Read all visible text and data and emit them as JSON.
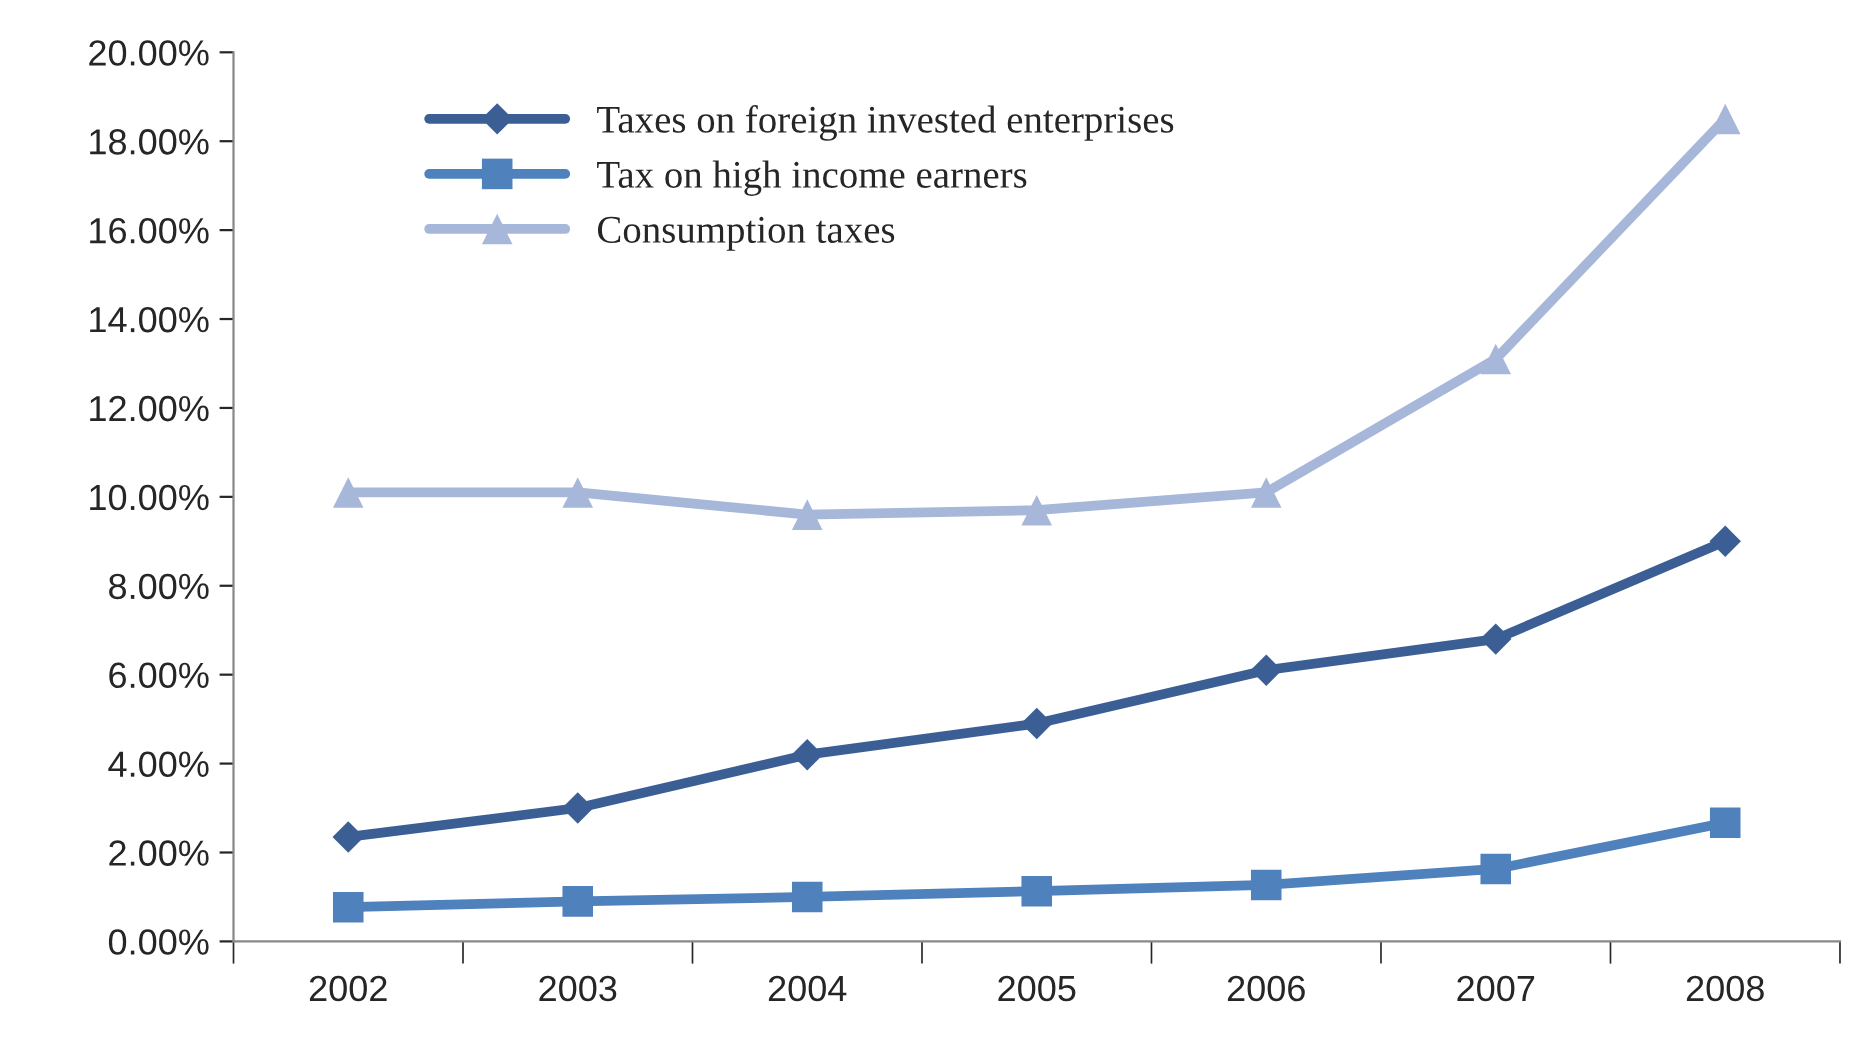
{
  "chart_data": {
    "type": "line",
    "categories": [
      "2002",
      "2003",
      "2004",
      "2005",
      "2006",
      "2007",
      "2008"
    ],
    "series": [
      {
        "name": "Taxes on foreign invested enterprises",
        "color": "#3b5f95",
        "marker": "diamond",
        "values": [
          2.35,
          3.0,
          4.2,
          4.9,
          6.1,
          6.8,
          9.0
        ]
      },
      {
        "name": "Tax on high income earners",
        "color": "#4f81bd",
        "marker": "square",
        "values": [
          0.77,
          0.9,
          1.0,
          1.13,
          1.27,
          1.63,
          2.67
        ]
      },
      {
        "name": "Consumption taxes",
        "color": "#a7b7d9",
        "marker": "triangle",
        "values": [
          10.1,
          10.1,
          9.6,
          9.7,
          10.1,
          13.1,
          18.5
        ]
      }
    ],
    "ylim": [
      0,
      20
    ],
    "yticks": [
      {
        "value": 0,
        "label": "0.00%"
      },
      {
        "value": 2,
        "label": "2.00%"
      },
      {
        "value": 4,
        "label": "4.00%"
      },
      {
        "value": 6,
        "label": "6.00%"
      },
      {
        "value": 8,
        "label": "8.00%"
      },
      {
        "value": 10,
        "label": "10.00%"
      },
      {
        "value": 12,
        "label": "12.00%"
      },
      {
        "value": 14,
        "label": "14.00%"
      },
      {
        "value": 16,
        "label": "16.00%"
      },
      {
        "value": 18,
        "label": "18.00%"
      },
      {
        "value": 20,
        "label": "20.00%"
      }
    ],
    "grid": false,
    "legend": "top left",
    "line_style": "solid"
  }
}
